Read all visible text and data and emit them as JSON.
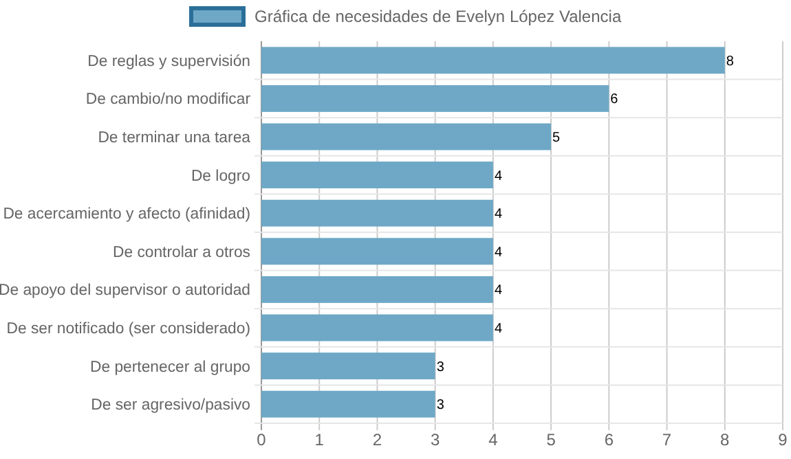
{
  "chart_data": {
    "type": "bar",
    "orientation": "horizontal",
    "categories": [
      "De reglas y supervisión",
      "De cambio/no modificar",
      "De terminar una tarea",
      "De logro",
      "De acercamiento y afecto (afinidad)",
      "De controlar a otros",
      "De apoyo del supervisor o autoridad",
      "De ser notificado (ser considerado)",
      "De pertenecer al grupo",
      "De ser agresivo/pasivo"
    ],
    "series": [
      {
        "name": "Gráfica de necesidades de Evelyn López Valencia",
        "color": "#6ea8c6",
        "values": [
          8,
          6,
          5,
          4,
          4,
          4,
          4,
          4,
          3,
          3
        ]
      }
    ],
    "xlim": [
      0,
      9
    ],
    "xticks": [
      0,
      1,
      2,
      3,
      4,
      5,
      6,
      7,
      8,
      9
    ],
    "grid": true,
    "legend": "top",
    "data_labels": true
  }
}
